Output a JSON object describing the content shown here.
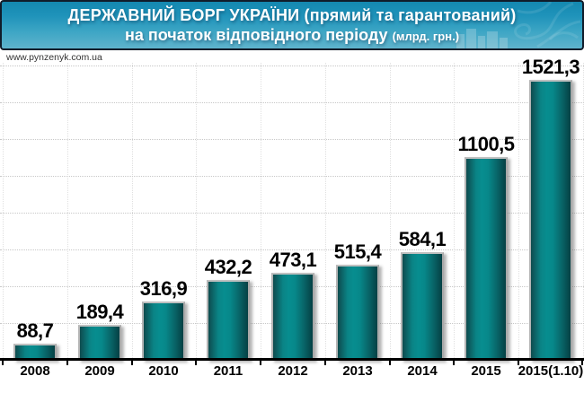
{
  "header": {
    "title_line1": "ДЕРЖАВНИЙ БОРГ УКРАЇНИ (прямий та гарантований)",
    "title_line2": "на початок відповідного періоду",
    "title_line2_unit": "(млрд. грн.)"
  },
  "watermark": "www.pynzenyk.com.ua",
  "chart_data": {
    "type": "bar",
    "title": "ДЕРЖАВНИЙ БОРГ УКРАЇНИ (прямий та гарантований) на початок відповідного періоду",
    "unit": "млрд. грн.",
    "categories": [
      "2008",
      "2009",
      "2010",
      "2011",
      "2012",
      "2013",
      "2014",
      "2015",
      "2015(1.10)"
    ],
    "values": [
      88.7,
      189.4,
      316.9,
      432.2,
      473.1,
      515.4,
      584.1,
      1100.5,
      1521.3
    ],
    "value_labels": [
      "88,7",
      "189,4",
      "316,9",
      "432,2",
      "473,1",
      "515,4",
      "584,1",
      "1100,5",
      "1521,3"
    ],
    "xlabel": "",
    "ylabel": "",
    "ylim": [
      0,
      1600
    ],
    "grid_step": 200,
    "grid": true,
    "legend_position": "none"
  },
  "colors": {
    "background": "#ffffff",
    "banner_top": "#1488b0",
    "banner_bottom": "#5fb3cc",
    "banner_border": "#101c2a",
    "title_color": "#ffffff",
    "bar_mid": "#078d8f",
    "bar_edge_light": "#0e4b4e",
    "bar_edge_dark": "#054044",
    "bar_border": "#a9a9a9",
    "grid_color": "#c8c8c8",
    "axis_color": "#000000",
    "label_color": "#000000",
    "watermark_color": "#333333"
  }
}
